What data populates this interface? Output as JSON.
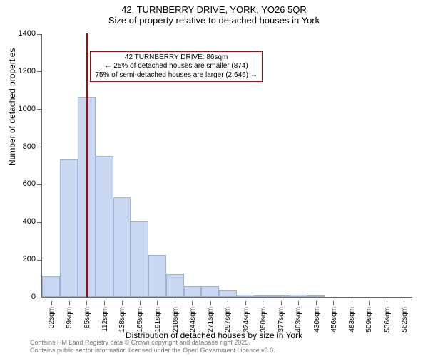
{
  "title": {
    "line1": "42, TURNBERRY DRIVE, YORK, YO26 5QR",
    "line2": "Size of property relative to detached houses in York",
    "fontsize": 13
  },
  "chart": {
    "type": "histogram",
    "xlabel": "Distribution of detached houses by size in York",
    "ylabel": "Number of detached properties",
    "label_fontsize": 12,
    "xlim": [
      18,
      575
    ],
    "ylim": [
      0,
      1400
    ],
    "ytick_step": 200,
    "yticks": [
      0,
      200,
      400,
      600,
      800,
      1000,
      1200,
      1400
    ],
    "xtick_labels": [
      "32sqm",
      "59sqm",
      "85sqm",
      "112sqm",
      "138sqm",
      "165sqm",
      "191sqm",
      "218sqm",
      "244sqm",
      "271sqm",
      "297sqm",
      "324sqm",
      "350sqm",
      "377sqm",
      "403sqm",
      "430sqm",
      "456sqm",
      "483sqm",
      "509sqm",
      "536sqm",
      "562sqm"
    ],
    "xtick_values": [
      32,
      59,
      85,
      112,
      138,
      165,
      191,
      218,
      244,
      271,
      297,
      324,
      350,
      377,
      403,
      430,
      456,
      483,
      509,
      536,
      562
    ],
    "bar_color": "#c9d8f0",
    "bar_border": "#9db3d9",
    "background_color": "#ffffff",
    "axis_color": "#666666",
    "bars": [
      {
        "x_start": 18,
        "x_end": 45,
        "value": 110
      },
      {
        "x_start": 45,
        "x_end": 72,
        "value": 730
      },
      {
        "x_start": 72,
        "x_end": 98,
        "value": 1065
      },
      {
        "x_start": 98,
        "x_end": 125,
        "value": 750
      },
      {
        "x_start": 125,
        "x_end": 151,
        "value": 530
      },
      {
        "x_start": 151,
        "x_end": 178,
        "value": 400
      },
      {
        "x_start": 178,
        "x_end": 204,
        "value": 225
      },
      {
        "x_start": 204,
        "x_end": 231,
        "value": 120
      },
      {
        "x_start": 231,
        "x_end": 257,
        "value": 55
      },
      {
        "x_start": 257,
        "x_end": 284,
        "value": 55
      },
      {
        "x_start": 284,
        "x_end": 310,
        "value": 35
      },
      {
        "x_start": 310,
        "x_end": 337,
        "value": 10
      },
      {
        "x_start": 337,
        "x_end": 363,
        "value": 5
      },
      {
        "x_start": 363,
        "x_end": 390,
        "value": 5
      },
      {
        "x_start": 390,
        "x_end": 416,
        "value": 10
      },
      {
        "x_start": 416,
        "x_end": 443,
        "value": 5
      }
    ],
    "reference_line": {
      "x_value": 86,
      "color": "#c00000"
    },
    "callout": {
      "line1": "42 TURNBERRY DRIVE: 86sqm",
      "line2": "← 25% of detached houses are smaller (874)",
      "line3": "75% of semi-detached houses are larger (2,646) →",
      "border_color": "#c00000",
      "x_anchor": 86,
      "y_anchor": 1310
    }
  },
  "footer": {
    "line1": "Contains HM Land Registry data © Crown copyright and database right 2025.",
    "line2": "Contains public sector information licensed under the Open Government Licence v3.0.",
    "color": "#777777",
    "fontsize": 9
  }
}
